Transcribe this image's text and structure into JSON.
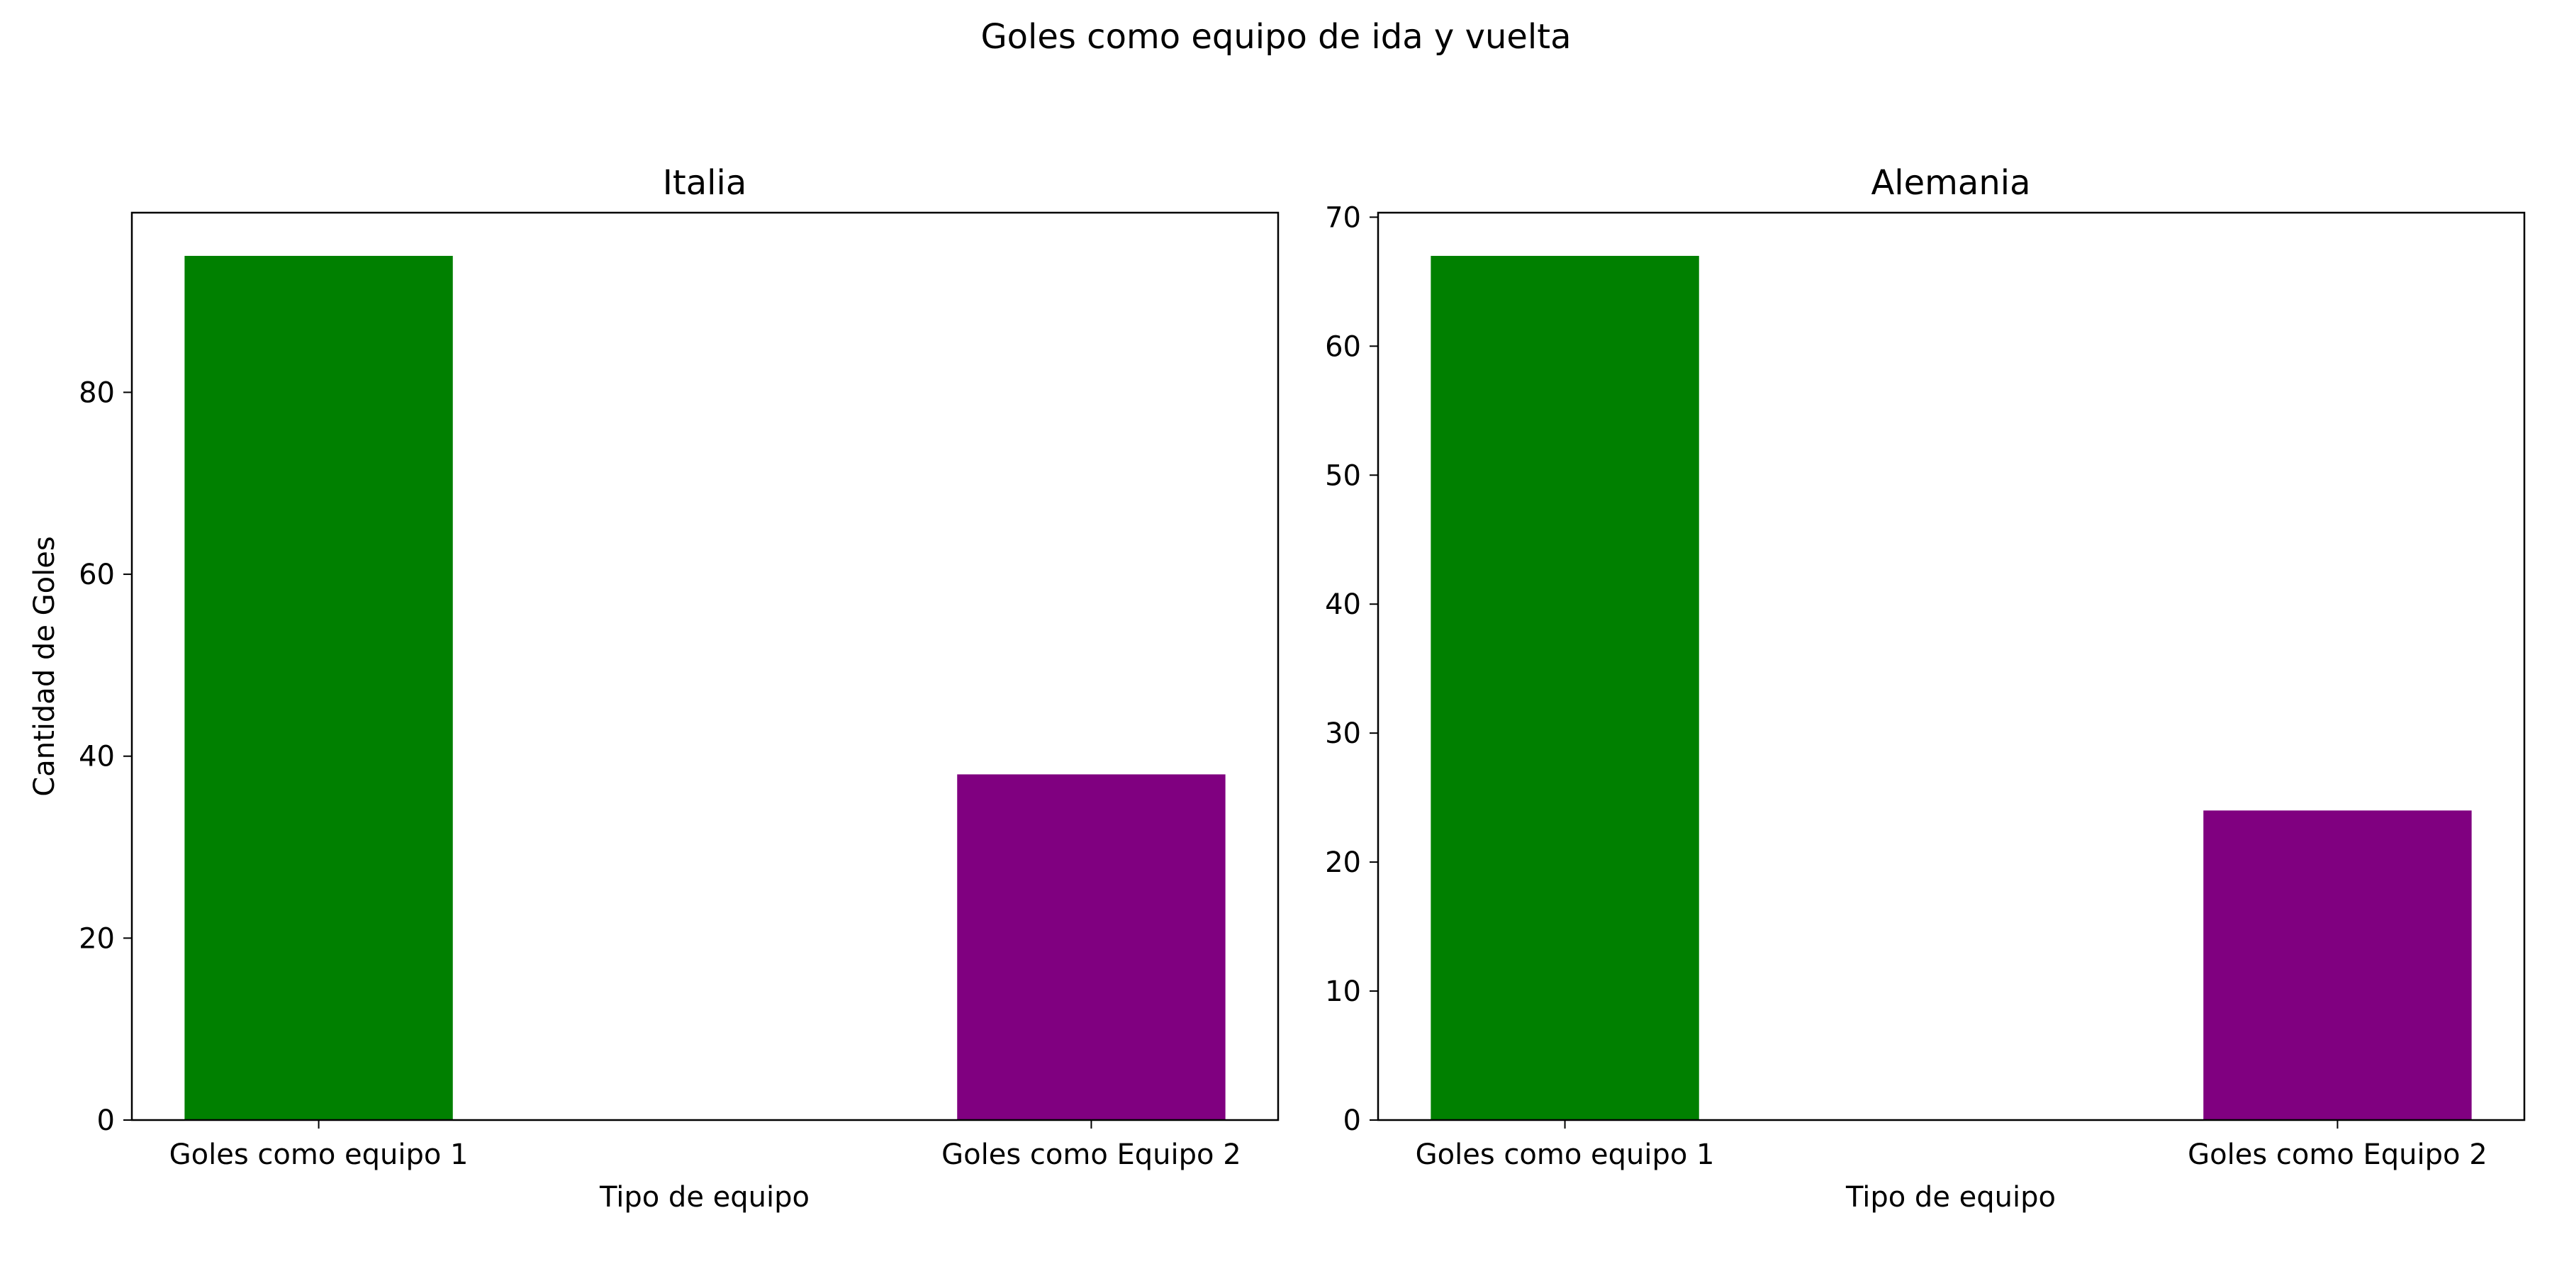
{
  "suptitle": "Goles como equipo de ida y vuelta",
  "chart_data": [
    {
      "type": "bar",
      "title": "Italia",
      "xlabel": "Tipo de equipo",
      "ylabel": "Cantidad de Goles",
      "categories": [
        "Goles como equipo 1",
        "Goles como Equipo 2"
      ],
      "values": [
        95,
        38
      ],
      "colors": [
        "#008000",
        "#800080"
      ],
      "ylim": [
        0,
        99.75
      ],
      "yticks": [
        0,
        20,
        40,
        60,
        80
      ],
      "grid": false,
      "legend": "none"
    },
    {
      "type": "bar",
      "title": "Alemania",
      "xlabel": "Tipo de equipo",
      "ylabel": "",
      "categories": [
        "Goles como equipo 1",
        "Goles como Equipo 2"
      ],
      "values": [
        67,
        24
      ],
      "colors": [
        "#008000",
        "#800080"
      ],
      "ylim": [
        0,
        70.35
      ],
      "yticks": [
        0,
        10,
        20,
        30,
        40,
        50,
        60,
        70
      ],
      "grid": false,
      "legend": "none"
    }
  ]
}
